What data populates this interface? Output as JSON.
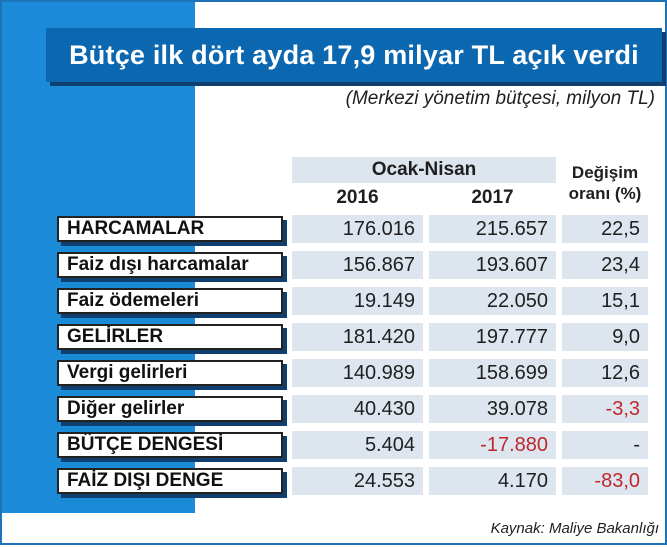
{
  "title": "Bütçe ilk dört ayda 17,9 milyar TL açık verdi",
  "subtitle": "(Merkezi yönetim bütçesi, milyon TL)",
  "header": {
    "period": "Ocak-Nisan",
    "year1": "2016",
    "year2": "2017",
    "change_line1": "Değişim",
    "change_line2": "oranı (%)"
  },
  "rows": [
    {
      "label": "HARCAMALAR",
      "v2016": "176.016",
      "v2017": "215.657",
      "change": "22,5"
    },
    {
      "label": "Faiz dışı harcamalar",
      "v2016": "156.867",
      "v2017": "193.607",
      "change": "23,4"
    },
    {
      "label": "Faiz ödemeleri",
      "v2016": "19.149",
      "v2017": "22.050",
      "change": "15,1"
    },
    {
      "label": "GELİRLER",
      "v2016": "181.420",
      "v2017": "197.777",
      "change": "9,0"
    },
    {
      "label": "Vergi gelirleri",
      "v2016": "140.989",
      "v2017": "158.699",
      "change": "12,6"
    },
    {
      "label": "Diğer gelirler",
      "v2016": "40.430",
      "v2017": "39.078",
      "change": "-3,3"
    },
    {
      "label": "BÜTÇE DENGESİ",
      "v2016": "5.404",
      "v2017": "-17.880",
      "change": "-"
    },
    {
      "label": "FAİZ DIŞI DENGE",
      "v2016": "24.553",
      "v2017": "4.170",
      "change": "-83,0"
    }
  ],
  "source": "Kaynak: Maliye Bakanlığı",
  "colors": {
    "accent_blue": "#1b8ad8",
    "title_blue": "#0b67b0",
    "negative": "#c0272d",
    "cell_bg": "#dde6ef"
  }
}
